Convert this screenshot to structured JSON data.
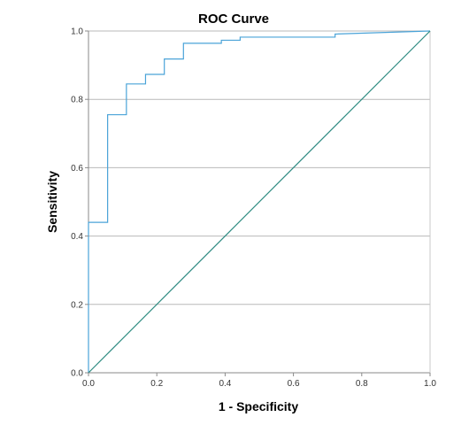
{
  "chart_data": {
    "type": "line",
    "title": "ROC Curve",
    "xlabel": "1 - Specificity",
    "ylabel": "Sensitivity",
    "xlim": [
      0.0,
      1.0
    ],
    "ylim": [
      0.0,
      1.0
    ],
    "xticks": [
      "0.0",
      "0.2",
      "0.4",
      "0.6",
      "0.8",
      "1.0"
    ],
    "yticks": [
      "0.0",
      "0.2",
      "0.4",
      "0.6",
      "0.8",
      "1.0"
    ],
    "grid": "horizontal",
    "series": [
      {
        "color": "#4aa3d8",
        "step": true,
        "x": [
          0.0,
          0.0,
          0.056,
          0.056,
          0.111,
          0.111,
          0.167,
          0.167,
          0.222,
          0.222,
          0.278,
          0.278,
          0.389,
          0.389,
          0.444,
          0.444,
          0.722,
          0.722,
          1.0
        ],
        "y": [
          0.0,
          0.44,
          0.44,
          0.755,
          0.755,
          0.845,
          0.845,
          0.873,
          0.873,
          0.918,
          0.918,
          0.964,
          0.964,
          0.973,
          0.973,
          0.982,
          0.982,
          0.991,
          1.0
        ]
      },
      {
        "color": "#2e8b82",
        "x": [
          0.0,
          1.0
        ],
        "y": [
          0.0,
          1.0
        ]
      }
    ]
  }
}
